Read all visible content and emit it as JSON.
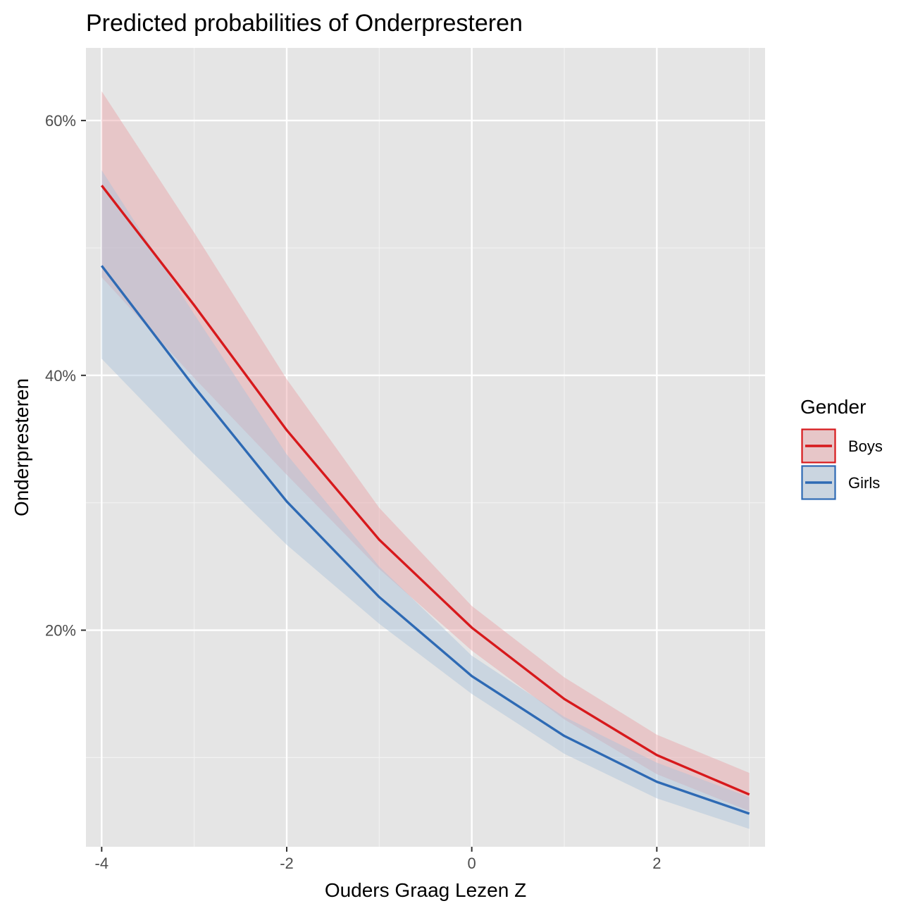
{
  "chart_data": {
    "type": "line",
    "title": "Predicted probabilities of Onderpresteren",
    "xlabel": "Ouders Graag Lezen Z",
    "ylabel": "Onderpresteren",
    "x": [
      -4,
      -3,
      -2,
      -1,
      0,
      1,
      2,
      3
    ],
    "xlim": [
      -4.17,
      3.17
    ],
    "ylim": [
      0.03,
      0.657
    ],
    "x_ticks": [
      -4,
      -2,
      0,
      2
    ],
    "x_tick_labels": [
      "-4",
      "-2",
      "0",
      "2"
    ],
    "x_minor_ticks": [
      -3,
      -1,
      1,
      3
    ],
    "y_ticks": [
      0.2,
      0.4,
      0.6
    ],
    "y_tick_labels": [
      "20%",
      "40%",
      "60%"
    ],
    "y_minor_ticks": [
      0.1,
      0.3,
      0.5
    ],
    "grid": true,
    "legend": {
      "title": "Gender",
      "position": "right"
    },
    "series": [
      {
        "name": "Boys",
        "color": "#d7191c",
        "fill": "#e8a0a5",
        "values": [
          0.549,
          0.455,
          0.357,
          0.271,
          0.202,
          0.146,
          0.102,
          0.071
        ],
        "lower": [
          0.477,
          0.398,
          0.322,
          0.248,
          0.184,
          0.13,
          0.087,
          0.058
        ],
        "upper": [
          0.623,
          0.512,
          0.397,
          0.296,
          0.219,
          0.163,
          0.118,
          0.088
        ]
      },
      {
        "name": "Girls",
        "color": "#2e6ab4",
        "fill": "#a8c0da",
        "values": [
          0.486,
          0.391,
          0.301,
          0.226,
          0.164,
          0.117,
          0.081,
          0.056
        ],
        "lower": [
          0.413,
          0.338,
          0.267,
          0.205,
          0.15,
          0.103,
          0.068,
          0.044
        ],
        "upper": [
          0.561,
          0.448,
          0.338,
          0.25,
          0.18,
          0.132,
          0.096,
          0.069
        ]
      }
    ]
  }
}
